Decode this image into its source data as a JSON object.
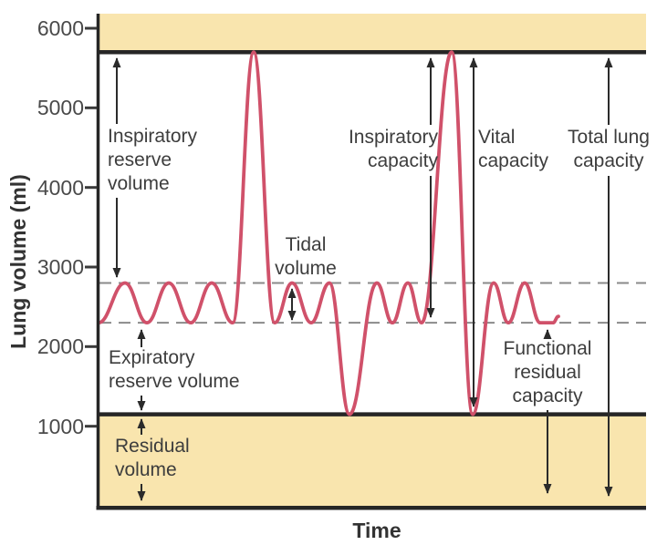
{
  "figure": {
    "y_axis": {
      "label": "Lung volume (ml)",
      "ticks": [
        "6000",
        "5000",
        "4000",
        "3000",
        "2000",
        "1000"
      ]
    },
    "x_axis": {
      "label": "Time"
    },
    "labels": {
      "irv": "Inspiratory\nreserve\nvolume",
      "tidal": "Tidal\nvolume",
      "ic": "Inspiratory\ncapacity",
      "vc": "Vital\ncapacity",
      "tlc": "Total lung\ncapacity",
      "erv": "Expiratory\nreserve volume",
      "frc": "Functional\nresidual\ncapacity",
      "rv": "Residual\nvolume"
    },
    "colors": {
      "band": "#f9e5ae",
      "curve": "#d0516a",
      "axis": "#262626",
      "dashed": "#8a8a8a",
      "text": "#3d3d3d"
    }
  },
  "chart_data": {
    "type": "line",
    "title": "",
    "xlabel": "Time",
    "ylabel": "Lung volume (ml)",
    "ylim": [
      0,
      6300
    ],
    "yticks": [
      6000,
      5000,
      4000,
      3000,
      2000,
      1000
    ],
    "grid": "off",
    "dashed_guide_lines_ml": [
      2800,
      2300
    ],
    "boundary_lines_ml": [
      5700,
      1150
    ],
    "shaded_bands_ml": [
      [
        5700,
        6300
      ],
      [
        0,
        1150
      ]
    ],
    "levels_ml": {
      "max_inspiration": 5700,
      "tidal_peak": 2800,
      "tidal_trough": 2300,
      "max_expiration": 1150
    },
    "annotations": [
      {
        "label": "Inspiratory reserve volume",
        "from_ml": 2800,
        "to_ml": 5700
      },
      {
        "label": "Tidal volume",
        "from_ml": 2300,
        "to_ml": 2800
      },
      {
        "label": "Inspiratory capacity",
        "from_ml": 2300,
        "to_ml": 5700
      },
      {
        "label": "Vital capacity",
        "from_ml": 1150,
        "to_ml": 5700
      },
      {
        "label": "Total lung capacity",
        "from_ml": 0,
        "to_ml": 5700
      },
      {
        "label": "Expiratory reserve volume",
        "from_ml": 1150,
        "to_ml": 2300
      },
      {
        "label": "Functional residual capacity",
        "from_ml": 0,
        "to_ml": 2300
      },
      {
        "label": "Residual volume",
        "from_ml": 0,
        "to_ml": 1150
      }
    ],
    "series": [
      {
        "name": "spirogram",
        "color": "#d0516a",
        "x_unit": "px",
        "y_unit": "ml",
        "extrema": [
          [
            108,
            2300
          ],
          [
            137,
            2800
          ],
          [
            161,
            2300
          ],
          [
            185,
            2800
          ],
          [
            209,
            2300
          ],
          [
            232,
            2800
          ],
          [
            255,
            2300
          ],
          [
            278,
            5700
          ],
          [
            301,
            2300
          ],
          [
            320,
            2800
          ],
          [
            341,
            2300
          ],
          [
            361,
            2800
          ],
          [
            383,
            1150
          ],
          [
            413,
            2800
          ],
          [
            430,
            2300
          ],
          [
            447,
            2800
          ],
          [
            462,
            2300
          ],
          [
            495,
            5700
          ],
          [
            518,
            1150
          ],
          [
            541,
            2800
          ],
          [
            557,
            2300
          ],
          [
            575,
            2800
          ],
          [
            592,
            2300
          ],
          [
            606,
            2300
          ],
          [
            612,
            2380
          ]
        ]
      }
    ]
  }
}
